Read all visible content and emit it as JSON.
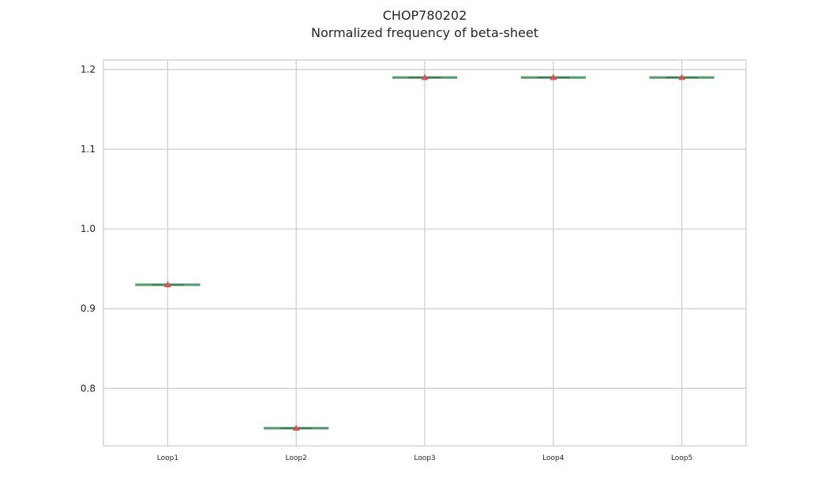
{
  "chart_data": {
    "type": "box",
    "title": "CHOP780202",
    "subtitle": "Normalized frequency of beta-sheet",
    "xlabel": "",
    "ylabel": "",
    "categories": [
      "Loop1",
      "Loop2",
      "Loop3",
      "Loop4",
      "Loop5"
    ],
    "values": [
      0.93,
      0.75,
      1.19,
      1.19,
      1.19
    ],
    "series": [
      {
        "values": [
          0.93,
          0.75,
          1.19,
          1.19,
          1.19
        ]
      }
    ],
    "means": [
      0.93,
      0.75,
      1.19,
      1.19,
      1.19
    ],
    "ylim": [
      0.728,
      1.212
    ],
    "yticks": [
      0.8,
      0.9,
      1.0,
      1.1,
      1.2
    ],
    "ytick_labels": [
      "0.8",
      "0.9",
      "1.0",
      "1.1",
      "1.2"
    ],
    "grid": true,
    "legend": "none",
    "colors": {
      "box": "#5a9e6f",
      "median": "#2e6b3f",
      "mean_marker": "#d9534f",
      "grid": "#cccccc",
      "frame": "#cccccc",
      "text": "#262626"
    }
  }
}
